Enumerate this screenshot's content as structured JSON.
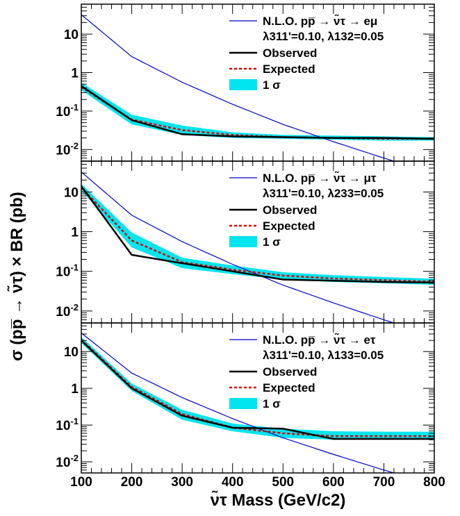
{
  "chart_data": [
    {
      "type": "line",
      "panel": "top",
      "legend_title": "N.L.O. pp̅ → ν̃τ → eμ",
      "coupling_label": "λ311'=0.10, λ132=0.05",
      "x": [
        100,
        200,
        300,
        400,
        500,
        600,
        700,
        800
      ],
      "series": [
        {
          "name": "N.L.O. pp̅ → ν̃τ → eμ",
          "color": "#0000cc",
          "values": [
            32,
            2.6,
            0.56,
            0.15,
            0.045,
            0.016,
            0.006,
            0.0024
          ]
        },
        {
          "name": "Observed",
          "color": "#000000",
          "values": [
            0.45,
            0.058,
            0.025,
            0.022,
            0.021,
            0.02,
            0.02,
            0.019
          ]
        },
        {
          "name": "Expected",
          "color": "#dd0000",
          "values": [
            0.42,
            0.06,
            0.032,
            0.024,
            0.021,
            0.02,
            0.019,
            0.019
          ]
        },
        {
          "name": "1 σ",
          "color": "#00e5ee",
          "lower": [
            0.35,
            0.045,
            0.024,
            0.02,
            0.019,
            0.018,
            0.017,
            0.017
          ],
          "upper": [
            0.55,
            0.08,
            0.042,
            0.028,
            0.024,
            0.023,
            0.022,
            0.021
          ]
        }
      ],
      "legend_entries": [
        "Observed",
        "Expected",
        "1 σ"
      ],
      "ylim": [
        0.005,
        60
      ],
      "yscale": "log",
      "yticks": [
        "10",
        "1",
        "10-1",
        "10-2"
      ]
    },
    {
      "type": "line",
      "panel": "middle",
      "legend_title": "N.L.O. pp̅ → ν̃τ → μτ",
      "coupling_label": "λ311'=0.10, λ233=0.05",
      "x": [
        100,
        200,
        300,
        400,
        500,
        600,
        700,
        800
      ],
      "series": [
        {
          "name": "N.L.O. pp̅ → ν̃τ → μτ",
          "color": "#0000cc",
          "values": [
            32,
            2.6,
            0.56,
            0.15,
            0.045,
            0.016,
            0.006,
            0.0024
          ]
        },
        {
          "name": "Observed",
          "color": "#000000",
          "values": [
            14,
            0.26,
            0.16,
            0.1,
            0.062,
            0.058,
            0.054,
            0.052
          ]
        },
        {
          "name": "Expected",
          "color": "#dd0000",
          "values": [
            13,
            0.6,
            0.17,
            0.11,
            0.078,
            0.066,
            0.06,
            0.055
          ]
        },
        {
          "name": "1 σ",
          "color": "#00e5ee",
          "lower": [
            11,
            0.4,
            0.12,
            0.085,
            0.062,
            0.054,
            0.05,
            0.046
          ],
          "upper": [
            16,
            0.95,
            0.22,
            0.14,
            0.095,
            0.08,
            0.072,
            0.065
          ]
        }
      ],
      "legend_entries": [
        "Observed",
        "Expected",
        "1 σ"
      ],
      "ylim": [
        0.005,
        60
      ],
      "yscale": "log",
      "yticks": [
        "10",
        "1",
        "10-1",
        "10-2"
      ]
    },
    {
      "type": "line",
      "panel": "bottom",
      "legend_title": "N.L.O. pp̅ → ν̃τ → eτ",
      "coupling_label": "λ311'=0.10, λ133=0.05",
      "x": [
        100,
        200,
        300,
        400,
        500,
        600,
        700,
        800
      ],
      "series": [
        {
          "name": "N.L.O. pp̅ → ν̃τ → eτ",
          "color": "#0000cc",
          "values": [
            32,
            2.6,
            0.56,
            0.15,
            0.045,
            0.016,
            0.006,
            0.0024
          ]
        },
        {
          "name": "Observed",
          "color": "#000000",
          "values": [
            20,
            1.0,
            0.18,
            0.085,
            0.08,
            0.042,
            0.042,
            0.042
          ]
        },
        {
          "name": "Expected",
          "color": "#dd0000",
          "values": [
            21,
            1.1,
            0.2,
            0.085,
            0.06,
            0.05,
            0.05,
            0.05
          ]
        },
        {
          "name": "1 σ",
          "color": "#00e5ee",
          "lower": [
            17,
            0.85,
            0.14,
            0.068,
            0.045,
            0.04,
            0.04,
            0.04
          ],
          "upper": [
            25,
            1.35,
            0.26,
            0.11,
            0.08,
            0.068,
            0.066,
            0.066
          ]
        }
      ],
      "legend_entries": [
        "Observed",
        "Expected",
        "1 σ"
      ],
      "ylim": [
        0.005,
        60
      ],
      "yscale": "log",
      "yticks": [
        "10",
        "1",
        "10-1",
        "10-2"
      ]
    }
  ],
  "axes": {
    "x_label": "ν̃τ Mass (GeV/c2)",
    "y_label": "σ (pp̅ → ν̃τ) × BR (pb)",
    "x_ticks": [
      "100",
      "200",
      "300",
      "400",
      "500",
      "600",
      "700",
      "800"
    ],
    "xlim": [
      100,
      800
    ]
  }
}
